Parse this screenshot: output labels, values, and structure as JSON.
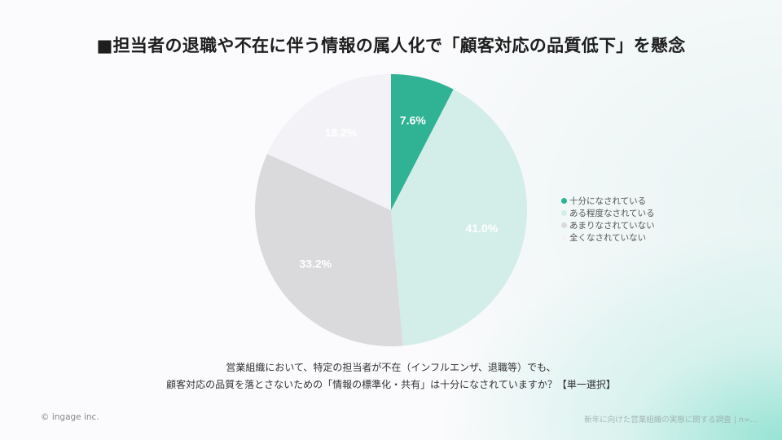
{
  "title": "■担当者の退職や不在に伴う情報の属人化で「顧客対応の品質低下」を懸念",
  "chart_data": {
    "type": "pie",
    "title": "■担当者の退職や不在に伴う情報の属人化で「顧客対応の品質低下」を懸念",
    "categories": [
      "十分になされている",
      "ある程度なされている",
      "あまりなされていない",
      "全くなされていない"
    ],
    "values": [
      7.6,
      41.0,
      33.2,
      18.2
    ],
    "labels": [
      "7.6%",
      "41.0%",
      "33.2%",
      "18.2%"
    ],
    "colors": [
      "#2fb394",
      "#d3ede8",
      "#dadadd",
      "#f3f2f6"
    ],
    "start_angle": "12 o'clock, clockwise",
    "legend_position": "right"
  },
  "legend": {
    "items": [
      {
        "label": "十分になされている",
        "color": "#2fb394"
      },
      {
        "label": "ある程度なされている",
        "color": "#d3ede8"
      },
      {
        "label": "あまりなされていない",
        "color": "#dadadd"
      },
      {
        "label": "全くなされていない",
        "color": "#f3f2f6"
      }
    ]
  },
  "question": {
    "line1": "営業組織において、特定の担当者が不在（インフルエンザ、退職等）でも、",
    "line2": "顧客対応の品質を落とさないための「情報の標準化・共有」は十分になされていますか？【単一選択】"
  },
  "footer": {
    "copyright": "© ingage inc.",
    "source": "新年に向けた営業組織の実態に関する調査 | n=..."
  }
}
